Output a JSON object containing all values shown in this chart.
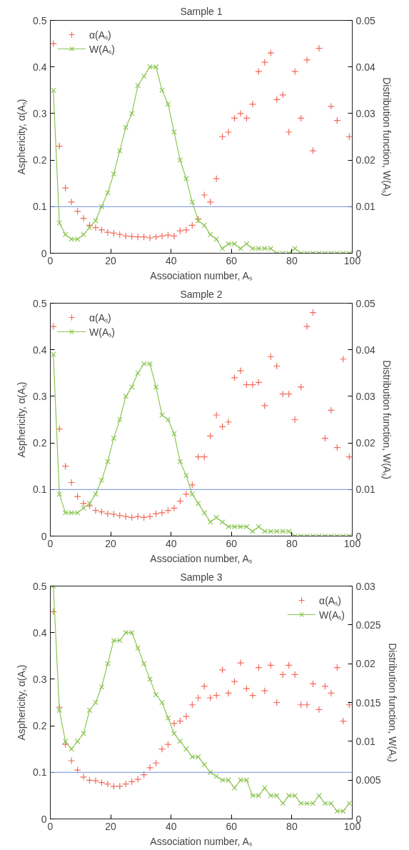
{
  "chart_data": [
    {
      "type": "scatter",
      "title": "Sample 1",
      "xlabel": "Association number, Aₛ",
      "ylabel": "Asphericity, α(Aₛ)",
      "y2label": "Distribution function, W(Aₛ)",
      "xlim": [
        0,
        100
      ],
      "xticks": [
        0,
        20,
        40,
        60,
        80,
        100
      ],
      "ylim": [
        0,
        0.5
      ],
      "yticks": [
        0,
        0.1,
        0.2,
        0.3,
        0.4,
        0.5
      ],
      "y2lim": [
        0,
        0.05
      ],
      "y2ticks": [
        0,
        0.01,
        0.02,
        0.03,
        0.04,
        0.05
      ],
      "grid": false,
      "legend": "top left",
      "x": [
        1,
        3,
        5,
        7,
        9,
        11,
        13,
        15,
        17,
        19,
        21,
        23,
        25,
        27,
        29,
        31,
        33,
        35,
        37,
        39,
        41,
        43,
        45,
        47,
        49,
        51,
        53,
        55,
        57,
        59,
        61,
        63,
        65,
        67,
        69,
        71,
        73,
        75,
        77,
        79,
        81,
        83,
        85,
        87,
        89,
        91,
        93,
        95,
        97,
        99
      ],
      "ref_lines": [
        {
          "axis": "y",
          "value": 0.1,
          "color": "#6f8fdc"
        }
      ],
      "series": [
        {
          "name": "α(Aₛ)",
          "type": "scatter",
          "marker": "cross",
          "color": "#f26b5b",
          "values": [
            0.45,
            0.23,
            0.14,
            0.11,
            0.09,
            0.075,
            0.06,
            0.055,
            0.05,
            0.045,
            0.043,
            0.04,
            0.037,
            0.036,
            0.035,
            0.035,
            0.033,
            0.035,
            0.037,
            0.039,
            0.037,
            0.048,
            0.05,
            0.06,
            0.073,
            0.125,
            0.11,
            0.16,
            0.25,
            0.26,
            0.29,
            0.3,
            0.29,
            0.32,
            0.39,
            0.41,
            0.43,
            0.33,
            0.34,
            0.26,
            0.39,
            0.29,
            0.415,
            0.22,
            0.44,
            null,
            0.315,
            0.285,
            null,
            0.25
          ]
        },
        {
          "name": "W(Aₛ)",
          "type": "line",
          "marker": "x",
          "axis": "y2",
          "color": "#8cc653",
          "values": [
            0.035,
            0.0065,
            0.004,
            0.003,
            0.003,
            0.004,
            0.0055,
            0.007,
            0.01,
            0.013,
            0.017,
            0.022,
            0.027,
            0.03,
            0.036,
            0.038,
            0.04,
            0.04,
            0.035,
            0.032,
            0.026,
            0.02,
            0.016,
            0.011,
            0.007,
            0.006,
            0.004,
            0.003,
            0.001,
            0.002,
            0.002,
            0.001,
            0.002,
            0.001,
            0.001,
            0.001,
            0.001,
            0,
            0,
            0,
            0.001,
            0,
            0,
            0,
            0,
            0,
            0,
            0,
            0,
            0
          ]
        }
      ]
    },
    {
      "type": "scatter",
      "title": "Sample 2",
      "xlabel": "Association number, Aₛ",
      "ylabel": "Asphericity, α(Aₛ)",
      "y2label": "Distribution function, W(Aₛ)",
      "xlim": [
        0,
        100
      ],
      "xticks": [
        0,
        20,
        40,
        60,
        80,
        100
      ],
      "ylim": [
        0,
        0.5
      ],
      "yticks": [
        0,
        0.1,
        0.2,
        0.3,
        0.4,
        0.5
      ],
      "y2lim": [
        0,
        0.05
      ],
      "y2ticks": [
        0,
        0.01,
        0.02,
        0.03,
        0.04,
        0.05
      ],
      "grid": false,
      "legend": "top left",
      "x": [
        1,
        3,
        5,
        7,
        9,
        11,
        13,
        15,
        17,
        19,
        21,
        23,
        25,
        27,
        29,
        31,
        33,
        35,
        37,
        39,
        41,
        43,
        45,
        47,
        49,
        51,
        53,
        55,
        57,
        59,
        61,
        63,
        65,
        67,
        69,
        71,
        73,
        75,
        77,
        79,
        81,
        83,
        85,
        87,
        89,
        91,
        93,
        95,
        97,
        99
      ],
      "ref_lines": [
        {
          "axis": "y",
          "value": 0.1,
          "color": "#6f8fdc"
        }
      ],
      "series": [
        {
          "name": "α(Aₛ)",
          "type": "scatter",
          "marker": "cross",
          "color": "#f26b5b",
          "values": [
            0.45,
            0.23,
            0.15,
            0.115,
            0.085,
            0.07,
            0.065,
            0.055,
            0.052,
            0.048,
            0.047,
            0.044,
            0.042,
            0.04,
            0.042,
            0.04,
            0.042,
            0.048,
            0.05,
            0.055,
            0.06,
            0.075,
            0.09,
            0.11,
            0.17,
            0.17,
            0.215,
            0.26,
            0.235,
            0.245,
            0.34,
            0.355,
            0.325,
            0.325,
            0.33,
            0.28,
            0.385,
            0.365,
            0.305,
            0.305,
            0.25,
            0.32,
            0.45,
            0.48,
            null,
            0.21,
            0.27,
            0.19,
            0.38,
            0.17
          ]
        },
        {
          "name": "W(Aₛ)",
          "type": "line",
          "marker": "x",
          "axis": "y2",
          "color": "#8cc653",
          "values": [
            0.039,
            0.009,
            0.005,
            0.005,
            0.005,
            0.006,
            0.007,
            0.009,
            0.012,
            0.016,
            0.021,
            0.025,
            0.03,
            0.032,
            0.035,
            0.037,
            0.037,
            0.032,
            0.026,
            0.025,
            0.022,
            0.016,
            0.013,
            0.009,
            0.007,
            0.005,
            0.003,
            0.004,
            0.003,
            0.002,
            0.002,
            0.002,
            0.002,
            0.001,
            0.002,
            0.001,
            0.001,
            0.001,
            0.001,
            0.001,
            0,
            0,
            0,
            0,
            0,
            0,
            0,
            0,
            0,
            0
          ]
        }
      ]
    },
    {
      "type": "scatter",
      "title": "Sample 3",
      "xlabel": "Association number, Aₛ",
      "ylabel": "Asphericity, α(Aₛ)",
      "y2label": "Distribution function, W(Aₛ)",
      "xlim": [
        0,
        100
      ],
      "xticks": [
        0,
        20,
        40,
        60,
        80,
        100
      ],
      "ylim": [
        0,
        0.5
      ],
      "yticks": [
        0,
        0.1,
        0.2,
        0.3,
        0.4,
        0.5
      ],
      "y2lim": [
        0,
        0.03
      ],
      "y2ticks": [
        0,
        0.005,
        0.01,
        0.015,
        0.02,
        0.025,
        0.03
      ],
      "grid": false,
      "legend": "top right",
      "x": [
        1,
        3,
        5,
        7,
        9,
        11,
        13,
        15,
        17,
        19,
        21,
        23,
        25,
        27,
        29,
        31,
        33,
        35,
        37,
        39,
        41,
        43,
        45,
        47,
        49,
        51,
        53,
        55,
        57,
        59,
        61,
        63,
        65,
        67,
        69,
        71,
        73,
        75,
        77,
        79,
        81,
        83,
        85,
        87,
        89,
        91,
        93,
        95,
        97,
        99
      ],
      "ref_lines": [
        {
          "axis": "y",
          "value": 0.1,
          "color": "#6f8fdc"
        }
      ],
      "series": [
        {
          "name": "α(Aₛ)",
          "type": "scatter",
          "marker": "cross",
          "color": "#f26b5b",
          "values": [
            0.445,
            0.24,
            0.16,
            0.125,
            0.105,
            0.09,
            0.083,
            0.082,
            0.078,
            0.075,
            0.07,
            0.07,
            0.075,
            0.08,
            0.085,
            0.095,
            0.11,
            0.12,
            0.15,
            0.16,
            0.205,
            0.21,
            0.22,
            0.245,
            0.26,
            0.285,
            0.26,
            0.265,
            0.32,
            0.27,
            0.295,
            0.335,
            0.28,
            0.265,
            0.325,
            0.275,
            0.33,
            0.25,
            0.31,
            0.33,
            0.31,
            0.245,
            0.245,
            0.29,
            0.235,
            0.285,
            0.27,
            0.325,
            0.21,
            0.245
          ]
        },
        {
          "name": "W(Aₛ)",
          "type": "line",
          "marker": "x",
          "axis": "y2",
          "color": "#8cc653",
          "values": [
            0.03,
            0.014,
            0.01,
            0.009,
            0.01,
            0.011,
            0.014,
            0.015,
            0.017,
            0.02,
            0.023,
            0.023,
            0.024,
            0.024,
            0.022,
            0.02,
            0.018,
            0.016,
            0.015,
            0.013,
            0.011,
            0.01,
            0.009,
            0.008,
            0.008,
            0.007,
            0.006,
            0.0055,
            0.005,
            0.005,
            0.004,
            0.005,
            0.005,
            0.003,
            0.003,
            0.004,
            0.003,
            0.003,
            0.002,
            0.003,
            0.003,
            0.002,
            0.002,
            0.002,
            0.003,
            0.002,
            0.002,
            0.001,
            0.001,
            0.002
          ]
        }
      ]
    }
  ]
}
